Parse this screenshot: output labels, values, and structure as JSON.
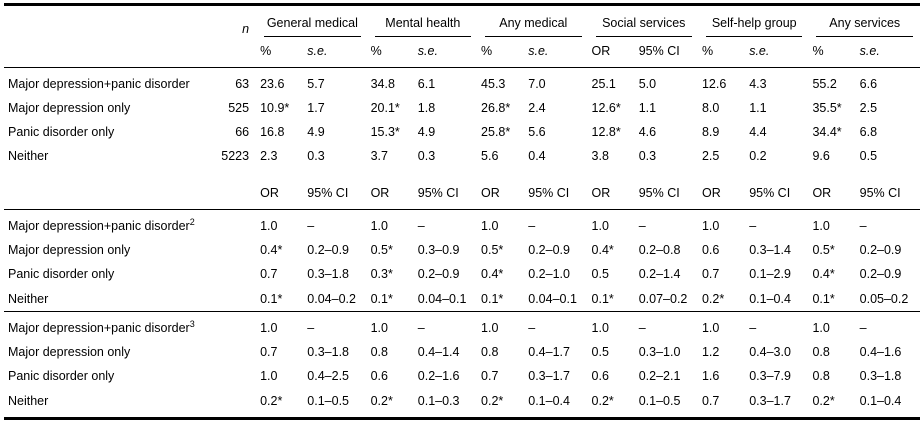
{
  "table": {
    "corner_label": "",
    "col_n_label": "n",
    "groups": [
      {
        "label": "General medical",
        "sub": [
          "%",
          "s.e."
        ]
      },
      {
        "label": "Mental health",
        "sub": [
          "%",
          "s.e."
        ]
      },
      {
        "label": "Any medical",
        "sub": [
          "%",
          "s.e."
        ]
      },
      {
        "label": "Social services",
        "sub": [
          "OR",
          "95% CI"
        ]
      },
      {
        "label": "Self-help group",
        "sub": [
          "%",
          "s.e."
        ]
      },
      {
        "label": "Any services",
        "sub": [
          "%",
          "s.e."
        ]
      }
    ],
    "mid_subheader": [
      "OR",
      "95% CI",
      "OR",
      "95% CI",
      "OR",
      "95% CI",
      "OR",
      "95% CI",
      "OR",
      "95% CI",
      "OR",
      "95% CI"
    ],
    "blocks": [
      {
        "subheader_after": true,
        "rows": [
          {
            "label": "Major depression+panic disorder",
            "sup": "",
            "n": "63",
            "cells": [
              "23.6",
              "5.7",
              "34.8",
              "6.1",
              "45.3",
              "7.0",
              "25.1",
              "5.0",
              "12.6",
              "4.3",
              "55.2",
              "6.6"
            ]
          },
          {
            "label": "Major depression only",
            "sup": "",
            "n": "525",
            "cells": [
              "10.9*",
              "1.7",
              "20.1*",
              "1.8",
              "26.8*",
              "2.4",
              "12.6*",
              "1.1",
              "8.0",
              "1.1",
              "35.5*",
              "2.5"
            ]
          },
          {
            "label": "Panic disorder only",
            "sup": "",
            "n": "66",
            "cells": [
              "16.8",
              "4.9",
              "15.3*",
              "4.9",
              "25.8*",
              "5.6",
              "12.8*",
              "4.6",
              "8.9",
              "4.4",
              "34.4*",
              "6.8"
            ]
          },
          {
            "label": "Neither",
            "sup": "",
            "n": "5223",
            "cells": [
              "2.3",
              "0.3",
              "3.7",
              "0.3",
              "5.6",
              "0.4",
              "3.8",
              "0.3",
              "2.5",
              "0.2",
              "9.6",
              "0.5"
            ]
          }
        ]
      },
      {
        "rows": [
          {
            "label": "Major depression+panic disorder",
            "sup": "2",
            "n": "",
            "cells": [
              "1.0",
              "–",
              "1.0",
              "–",
              "1.0",
              "–",
              "1.0",
              "–",
              "1.0",
              "–",
              "1.0",
              "–"
            ]
          },
          {
            "label": "Major depression only",
            "sup": "",
            "n": "",
            "cells": [
              "0.4*",
              "0.2–0.9",
              "0.5*",
              "0.3–0.9",
              "0.5*",
              "0.2–0.9",
              "0.4*",
              "0.2–0.8",
              "0.6",
              "0.3–1.4",
              "0.5*",
              "0.2–0.9"
            ]
          },
          {
            "label": "Panic disorder only",
            "sup": "",
            "n": "",
            "cells": [
              "0.7",
              "0.3–1.8",
              "0.3*",
              "0.2–0.9",
              "0.4*",
              "0.2–1.0",
              "0.5",
              "0.2–1.4",
              "0.7",
              "0.1–2.9",
              "0.4*",
              "0.2–0.9"
            ]
          },
          {
            "label": "Neither",
            "sup": "",
            "n": "",
            "cells": [
              "0.1*",
              "0.04–0.2",
              "0.1*",
              "0.04–0.1",
              "0.1*",
              "0.04–0.1",
              "0.1*",
              "0.07–0.2",
              "0.2*",
              "0.1–0.4",
              "0.1*",
              "0.05–0.2"
            ]
          }
        ]
      },
      {
        "rows": [
          {
            "label": "Major depression+panic disorder",
            "sup": "3",
            "n": "",
            "cells": [
              "1.0",
              "–",
              "1.0",
              "–",
              "1.0",
              "–",
              "1.0",
              "–",
              "1.0",
              "–",
              "1.0",
              "–"
            ]
          },
          {
            "label": "Major depression only",
            "sup": "",
            "n": "",
            "cells": [
              "0.7",
              "0.3–1.8",
              "0.8",
              "0.4–1.4",
              "0.8",
              "0.4–1.7",
              "0.5",
              "0.3–1.0",
              "1.2",
              "0.4–3.0",
              "0.8",
              "0.4–1.6"
            ]
          },
          {
            "label": "Panic disorder only",
            "sup": "",
            "n": "",
            "cells": [
              "1.0",
              "0.4–2.5",
              "0.6",
              "0.2–1.6",
              "0.7",
              "0.3–1.7",
              "0.6",
              "0.2–2.1",
              "1.6",
              "0.3–7.9",
              "0.8",
              "0.3–1.8"
            ]
          },
          {
            "label": "Neither",
            "sup": "",
            "n": "",
            "cells": [
              "0.2*",
              "0.1–0.5",
              "0.2*",
              "0.1–0.3",
              "0.2*",
              "0.1–0.4",
              "0.2*",
              "0.1–0.5",
              "0.7",
              "0.3–1.7",
              "0.2*",
              "0.1–0.4"
            ]
          }
        ]
      }
    ]
  }
}
